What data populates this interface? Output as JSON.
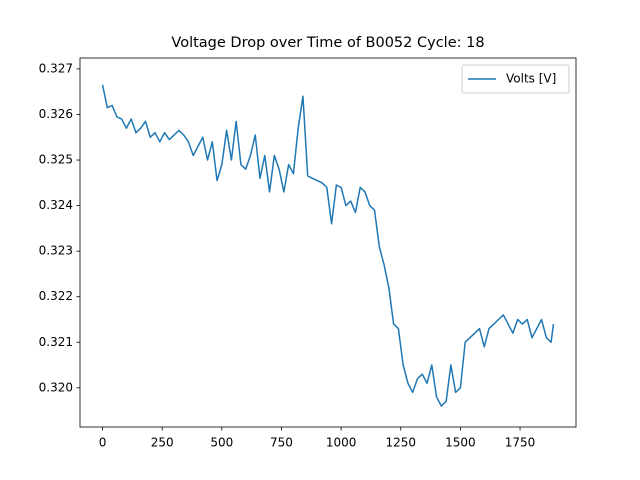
{
  "chart_data": {
    "type": "line",
    "title": "Voltage Drop over Time of B0052 Cycle: 18",
    "x": [
      0,
      20,
      40,
      60,
      80,
      100,
      120,
      140,
      160,
      180,
      200,
      220,
      240,
      260,
      280,
      300,
      320,
      340,
      360,
      380,
      400,
      420,
      440,
      460,
      480,
      500,
      520,
      540,
      560,
      580,
      600,
      620,
      640,
      660,
      680,
      700,
      720,
      740,
      760,
      780,
      800,
      820,
      840,
      860,
      880,
      900,
      920,
      940,
      960,
      980,
      1000,
      1020,
      1040,
      1060,
      1080,
      1100,
      1120,
      1140,
      1160,
      1180,
      1200,
      1220,
      1240,
      1260,
      1280,
      1300,
      1320,
      1340,
      1360,
      1380,
      1400,
      1420,
      1440,
      1460,
      1480,
      1500,
      1520,
      1540,
      1560,
      1580,
      1600,
      1620,
      1640,
      1660,
      1680,
      1700,
      1720,
      1740,
      1760,
      1780,
      1800,
      1820,
      1840,
      1860,
      1880,
      1890
    ],
    "series": [
      {
        "name": "Volts [V]",
        "color": "#1f77b4",
        "values": [
          0.32665,
          0.32615,
          0.3262,
          0.32595,
          0.3259,
          0.3257,
          0.3259,
          0.3256,
          0.3257,
          0.32585,
          0.3255,
          0.3256,
          0.3254,
          0.3256,
          0.32545,
          0.32555,
          0.32565,
          0.32555,
          0.3254,
          0.3251,
          0.3253,
          0.3255,
          0.325,
          0.3254,
          0.32455,
          0.3249,
          0.32565,
          0.325,
          0.32585,
          0.3249,
          0.3248,
          0.3251,
          0.32555,
          0.3246,
          0.3251,
          0.3243,
          0.3251,
          0.3248,
          0.3243,
          0.3249,
          0.3247,
          0.3257,
          0.3264,
          0.32465,
          0.3246,
          0.32455,
          0.3245,
          0.3244,
          0.3236,
          0.32445,
          0.3244,
          0.324,
          0.3241,
          0.32385,
          0.3244,
          0.3243,
          0.324,
          0.3239,
          0.3231,
          0.3227,
          0.3222,
          0.3214,
          0.3213,
          0.3205,
          0.3201,
          0.3199,
          0.3202,
          0.3203,
          0.3201,
          0.3205,
          0.3198,
          0.3196,
          0.3197,
          0.3205,
          0.3199,
          0.32,
          0.321,
          0.3211,
          0.3212,
          0.3213,
          0.3209,
          0.3213,
          0.3214,
          0.3215,
          0.3216,
          0.3214,
          0.3212,
          0.3215,
          0.3214,
          0.3215,
          0.3211,
          0.3213,
          0.3215,
          0.3211,
          0.321,
          0.3214
        ]
      }
    ],
    "xlim": [
      -94.5,
      1984.5
    ],
    "ylim": [
      0.31914,
      0.32724
    ],
    "xticks": [
      0,
      250,
      500,
      750,
      1000,
      1250,
      1500,
      1750
    ],
    "yticks": [
      {
        "value": 0.32,
        "label": "0.320"
      },
      0.321,
      0.322,
      0.323,
      0.324,
      0.325,
      0.326,
      0.327
    ],
    "legend": "upper right"
  }
}
